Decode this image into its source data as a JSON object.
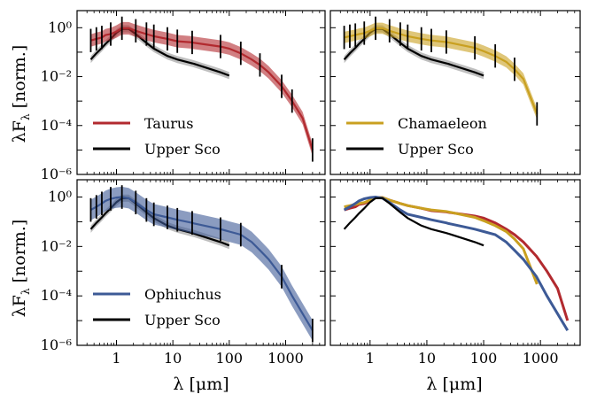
{
  "figure": {
    "ylabel": "λF",
    "ylabel_sub": "λ",
    "ylabel_unit": " [norm.]",
    "xlabel": "λ [μm]"
  },
  "chart_data": {
    "type": "line",
    "x_scale": "log",
    "y_scale": "log",
    "xlim": [
      0.2,
      5000
    ],
    "ylim": [
      1e-06,
      5
    ],
    "x_ticks": [
      1,
      10,
      100,
      1000
    ],
    "x_tick_labels": [
      "1",
      "10",
      "100",
      "1000"
    ],
    "y_ticks": [
      1e-06,
      0.0001,
      0.01,
      1
    ],
    "y_tick_labels": [
      "10⁻⁶",
      "10⁻⁴",
      "10⁻²",
      "10⁰"
    ],
    "colors": {
      "taurus": "#b22a2f",
      "chamaeleon": "#c9a020",
      "ophiuchus": "#3d5a96",
      "uppersco": "#000000",
      "uppersco_band": "#8a8a8a"
    },
    "upper_sco": {
      "name": "Upper Sco",
      "x": [
        0.35,
        0.44,
        0.55,
        0.64,
        0.79,
        1.0,
        1.25,
        1.65,
        2.2,
        3.4,
        4.6,
        8,
        12,
        22,
        24,
        70,
        100
      ],
      "y": [
        0.05,
        0.09,
        0.15,
        0.22,
        0.35,
        0.62,
        0.9,
        0.9,
        0.55,
        0.24,
        0.14,
        0.07,
        0.05,
        0.035,
        0.033,
        0.015,
        0.011
      ],
      "band_factor": 1.4
    },
    "panels": [
      {
        "id": "taurus",
        "region": "Taurus",
        "x": [
          0.35,
          0.44,
          0.55,
          0.64,
          0.79,
          1.0,
          1.25,
          1.65,
          2.2,
          3.4,
          4.6,
          8,
          12,
          22,
          24,
          70,
          100,
          160,
          250,
          350,
          500,
          850,
          1300,
          2000,
          3000
        ],
        "y": [
          0.3,
          0.35,
          0.4,
          0.5,
          0.55,
          0.7,
          0.95,
          0.95,
          0.75,
          0.55,
          0.45,
          0.35,
          0.28,
          0.25,
          0.24,
          0.17,
          0.14,
          0.09,
          0.05,
          0.03,
          0.015,
          0.004,
          0.001,
          0.0002,
          1e-05
        ],
        "band_factor": 1.8,
        "error_x": [
          0.35,
          0.44,
          0.55,
          0.79,
          1.25,
          2.2,
          3.4,
          4.6,
          8,
          12,
          22,
          70,
          160,
          350,
          850,
          1300,
          3000
        ],
        "error_factor": 3.0
      },
      {
        "id": "chamaeleon",
        "region": "Chamaeleon",
        "x": [
          0.35,
          0.44,
          0.55,
          0.64,
          0.79,
          1.0,
          1.25,
          1.65,
          2.2,
          3.4,
          4.6,
          8,
          12,
          22,
          24,
          70,
          100,
          160,
          250,
          350,
          500,
          870
        ],
        "y": [
          0.4,
          0.45,
          0.5,
          0.55,
          0.6,
          0.75,
          0.95,
          0.95,
          0.75,
          0.55,
          0.45,
          0.35,
          0.3,
          0.26,
          0.25,
          0.15,
          0.11,
          0.07,
          0.04,
          0.02,
          0.008,
          0.0003
        ],
        "band_factor": 1.7,
        "error_x": [
          0.35,
          0.44,
          0.55,
          0.79,
          1.25,
          2.2,
          3.4,
          4.6,
          8,
          12,
          22,
          70,
          160,
          350,
          870
        ],
        "error_factor": 3.0
      },
      {
        "id": "ophiuchus",
        "region": "Ophiuchus",
        "x": [
          0.35,
          0.44,
          0.55,
          0.64,
          0.79,
          1.0,
          1.25,
          1.65,
          2.2,
          3.4,
          4.6,
          8,
          12,
          22,
          24,
          70,
          100,
          160,
          250,
          350,
          500,
          850,
          1300,
          3000
        ],
        "y": [
          0.3,
          0.4,
          0.55,
          0.7,
          0.85,
          0.95,
          1.0,
          0.9,
          0.6,
          0.3,
          0.2,
          0.15,
          0.12,
          0.09,
          0.085,
          0.05,
          0.04,
          0.03,
          0.015,
          0.007,
          0.003,
          0.0006,
          0.0001,
          4e-06
        ],
        "band_factor": 2.6,
        "error_x": [
          0.35,
          0.44,
          0.55,
          0.79,
          1.25,
          2.2,
          3.4,
          4.6,
          8,
          12,
          22,
          70,
          160,
          850,
          3000
        ],
        "error_factor": 3.0
      }
    ],
    "combined_order": [
      "taurus",
      "chamaeleon",
      "ophiuchus",
      "uppersco"
    ]
  }
}
